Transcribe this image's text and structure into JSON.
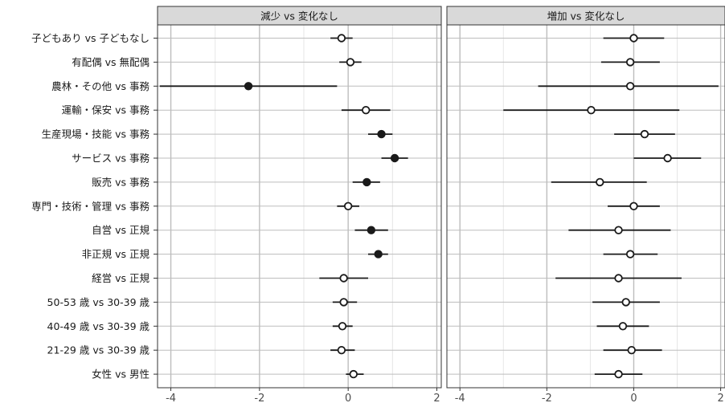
{
  "chart_data": {
    "type": "forest",
    "xlim": [
      -4.3,
      2.1
    ],
    "x_ticks": [
      -4,
      -2,
      0,
      2
    ],
    "x_tick_labels": [
      "-4",
      "-2",
      "0",
      "2"
    ],
    "categories": [
      "子どもあり vs 子どもなし",
      "有配偶 vs 無配偶",
      "農林・その他 vs 事務",
      "運輸・保安 vs 事務",
      "生産現場・技能 vs 事務",
      "サービス vs 事務",
      "販売 vs 事務",
      "専門・技術・管理 vs 事務",
      "自営 vs 正規",
      "非正規 vs 正規",
      "経営 vs 正規",
      "50-53 歳 vs 30-39 歳",
      "40-49 歳 vs 30-39 歳",
      "21-29 歳 vs 30-39 歳",
      "女性 vs 男性"
    ],
    "panels": [
      {
        "title": "減少 vs 変化なし",
        "estimates": [
          -0.15,
          0.05,
          -2.25,
          0.4,
          0.75,
          1.05,
          0.42,
          0.0,
          0.52,
          0.68,
          -0.1,
          -0.1,
          -0.13,
          -0.15,
          0.12
        ],
        "lower": [
          -0.4,
          -0.2,
          -4.25,
          -0.15,
          0.45,
          0.75,
          0.1,
          -0.25,
          0.15,
          0.45,
          -0.65,
          -0.35,
          -0.35,
          -0.4,
          -0.05
        ],
        "upper": [
          0.1,
          0.3,
          -0.25,
          0.95,
          1.0,
          1.35,
          0.72,
          0.25,
          0.9,
          0.9,
          0.45,
          0.2,
          0.1,
          0.15,
          0.35
        ],
        "significant": [
          false,
          false,
          true,
          false,
          true,
          true,
          true,
          false,
          true,
          true,
          false,
          false,
          false,
          false,
          false
        ]
      },
      {
        "title": "増加 vs 変化なし",
        "estimates": [
          0.0,
          -0.08,
          -0.08,
          -0.98,
          0.25,
          0.78,
          -0.78,
          0.0,
          -0.35,
          -0.08,
          -0.35,
          -0.18,
          -0.25,
          -0.05,
          -0.35
        ],
        "lower": [
          -0.7,
          -0.75,
          -2.2,
          -3.0,
          -0.45,
          0.0,
          -1.9,
          -0.6,
          -1.5,
          -0.7,
          -1.8,
          -0.95,
          -0.85,
          -0.7,
          -0.9
        ],
        "upper": [
          0.7,
          0.6,
          1.95,
          1.05,
          0.95,
          1.55,
          0.3,
          0.6,
          0.85,
          0.55,
          1.1,
          0.6,
          0.35,
          0.65,
          0.2
        ],
        "significant": [
          false,
          false,
          false,
          false,
          false,
          false,
          false,
          false,
          false,
          false,
          false,
          false,
          false,
          false,
          false
        ]
      }
    ]
  },
  "colors": {
    "panel_bg": "#ffffff",
    "grid_major": "#bdbdbd",
    "grid_minor": "#e6e6e6",
    "strip_bg": "#d9d9d9",
    "border": "#333333",
    "interval": "#1a1a1a",
    "point_sig": "#1a1a1a",
    "point_open": "#ffffff"
  }
}
